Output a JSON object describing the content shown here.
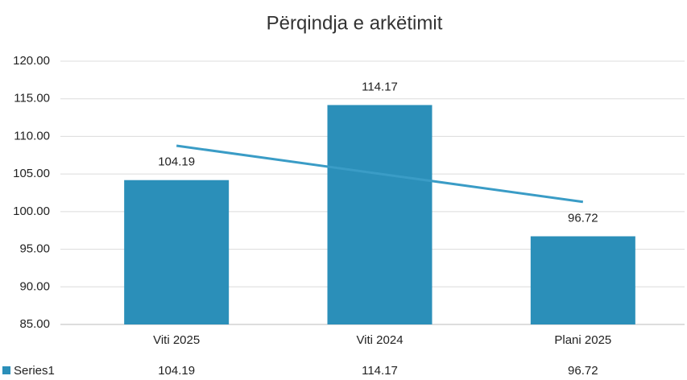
{
  "chart_data": {
    "type": "bar",
    "title": "Përqindja e arkëtimit",
    "categories": [
      "Viti 2025",
      "Viti 2024",
      "Plani 2025"
    ],
    "series": [
      {
        "name": "Series1",
        "color": "#2b8fb9",
        "values": [
          104.19,
          114.17,
          96.72
        ]
      }
    ],
    "trendline": true,
    "trendline_color": "#3a9cc6",
    "ylim": [
      85,
      120
    ],
    "yticks": [
      {
        "value": 85,
        "label": "85.00"
      },
      {
        "value": 90,
        "label": "90.00"
      },
      {
        "value": 95,
        "label": "95.00"
      },
      {
        "value": 100,
        "label": "100.00"
      },
      {
        "value": 105,
        "label": "105.00"
      },
      {
        "value": 110,
        "label": "110.00"
      },
      {
        "value": 115,
        "label": "115.00"
      },
      {
        "value": 120,
        "label": "120.00"
      }
    ],
    "grid": true,
    "data_table": true
  }
}
